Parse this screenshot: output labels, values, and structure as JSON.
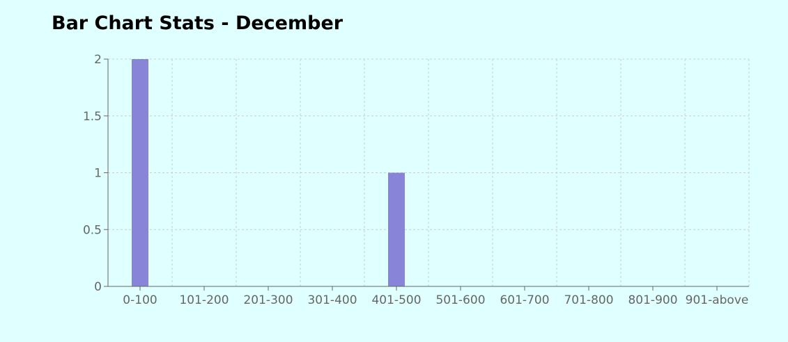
{
  "title": "Bar Chart Stats - December",
  "colors": {
    "bar": "#8884d8",
    "grid": "#cccccc",
    "axis": "#666666",
    "background": "#e0ffff"
  },
  "chart_data": {
    "type": "bar",
    "title": "Bar Chart Stats - December",
    "categories": [
      "0-100",
      "101-200",
      "201-300",
      "301-400",
      "401-500",
      "501-600",
      "601-700",
      "701-800",
      "801-900",
      "901-above"
    ],
    "values": [
      2,
      0,
      0,
      0,
      1,
      0,
      0,
      0,
      0,
      0
    ],
    "ylim": [
      0,
      2
    ],
    "yticks": [
      0,
      0.5,
      1,
      1.5,
      2
    ],
    "ytick_labels": [
      "0",
      "0.5",
      "1",
      "1.5",
      "2"
    ],
    "grid": true,
    "legend": "none",
    "xlabel": "",
    "ylabel": ""
  }
}
